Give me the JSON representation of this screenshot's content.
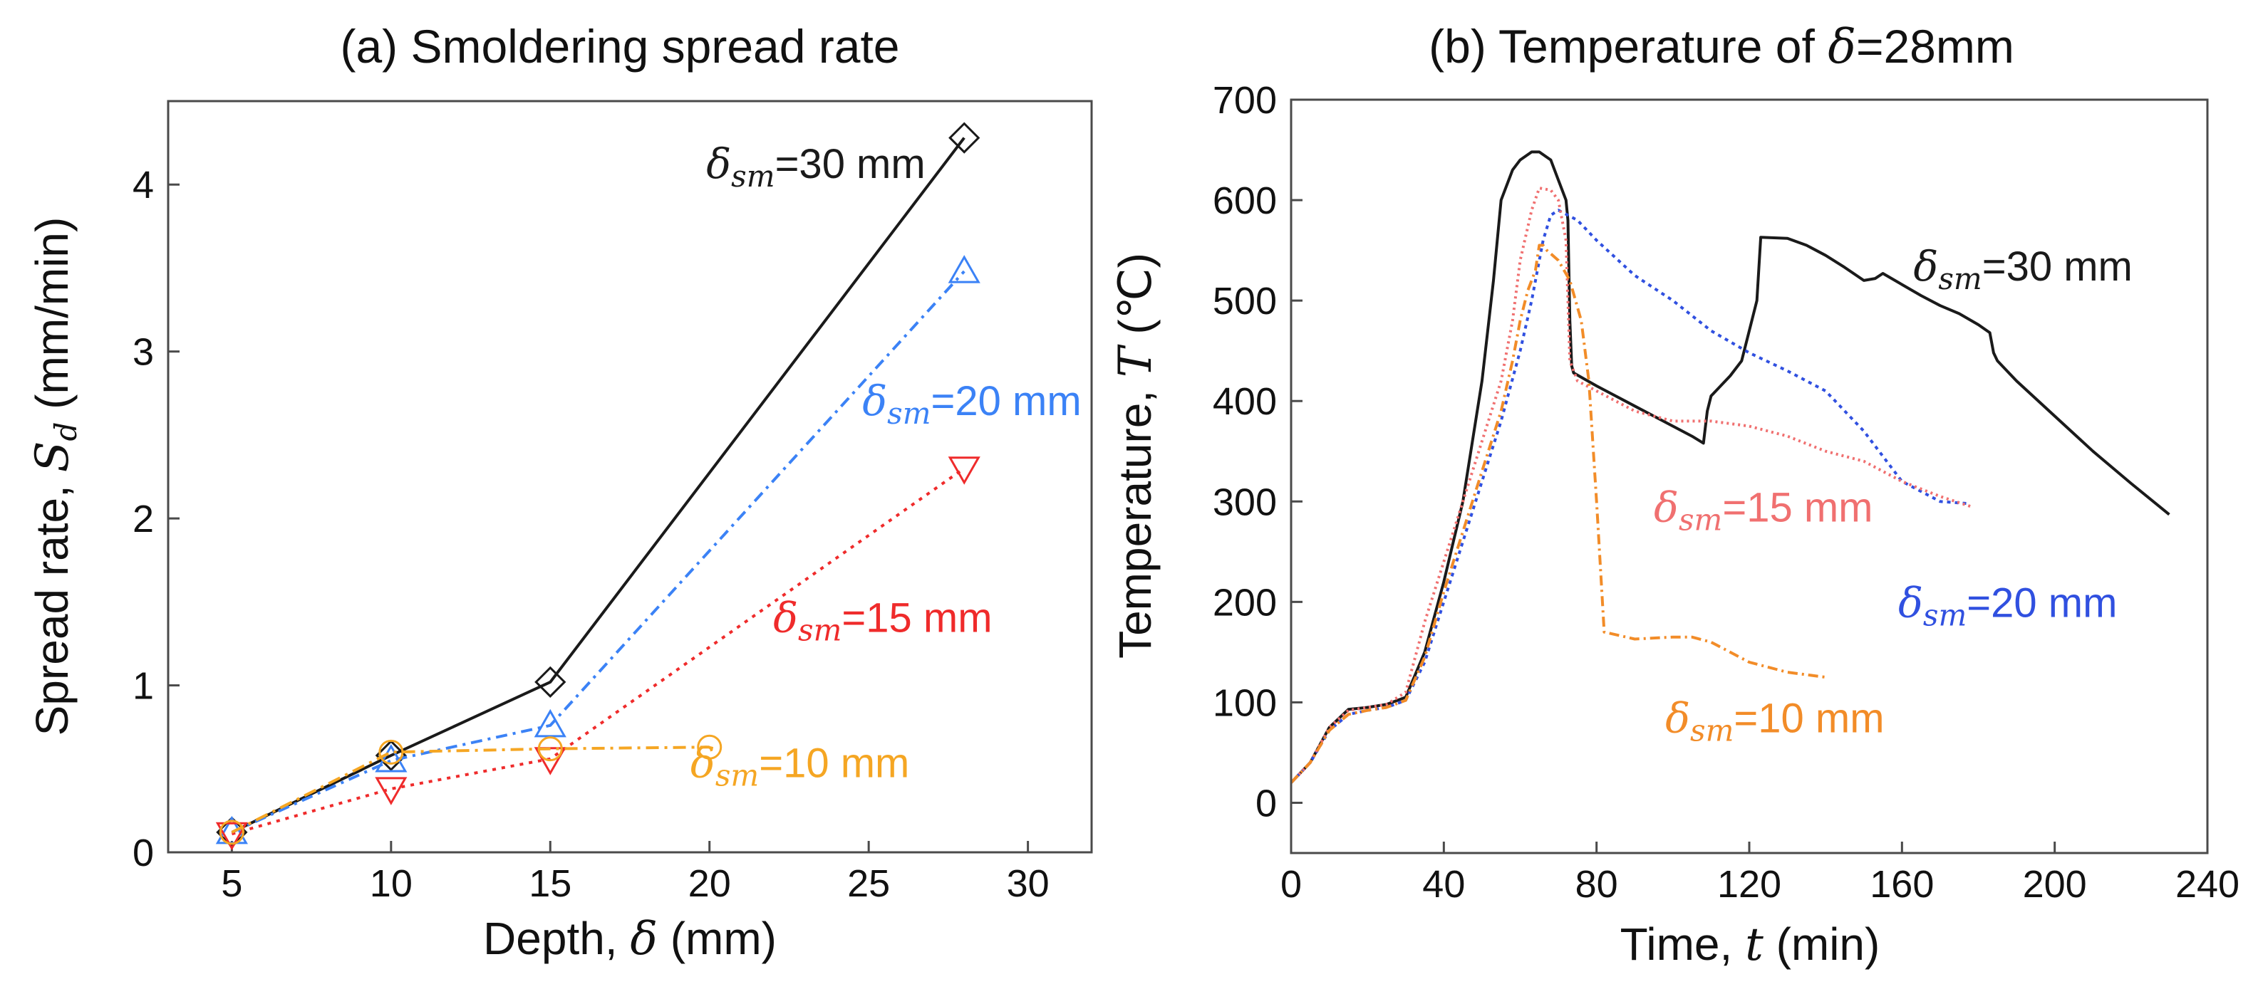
{
  "chart_data": [
    {
      "type": "line",
      "title": "(a) Smoldering  spread rate",
      "xlabel_text": "Depth, ",
      "xlabel_symbol": "δ",
      "xlabel_unit": " (mm)",
      "ylabel_text": "Spread rate, ",
      "ylabel_symbol": "S",
      "ylabel_sub": "d",
      "ylabel_unit": " (mm/min)",
      "xlim": [
        3,
        32
      ],
      "ylim": [
        0,
        4.5
      ],
      "xticks": [
        5,
        10,
        15,
        20,
        25,
        30
      ],
      "yticks": [
        0,
        1,
        2,
        3,
        4
      ],
      "series": [
        {
          "name": "δsm=30 mm",
          "label_prefix": "δ",
          "label_sub": "sm",
          "label_rest": "=30 mm",
          "color": "#1a1a1a",
          "dash": "",
          "marker": "diamond",
          "x": [
            5,
            10,
            15,
            28
          ],
          "y": [
            0.12,
            0.58,
            1.02,
            4.28
          ],
          "label_at": [
            19.9,
            4.04
          ]
        },
        {
          "name": "δsm=20 mm",
          "label_prefix": "δ",
          "label_sub": "sm",
          "label_rest": "=20 mm",
          "color": "#3b82f6",
          "dash": "16 8 4 8",
          "marker": "triangle-up",
          "x": [
            5,
            10,
            15,
            28
          ],
          "y": [
            0.12,
            0.55,
            0.76,
            3.48
          ],
          "label_at": [
            24.8,
            2.62
          ]
        },
        {
          "name": "δsm=15 mm",
          "label_prefix": "δ",
          "label_sub": "sm",
          "label_rest": "=15 mm",
          "color": "#ef2b2b",
          "dash": "5 8",
          "marker": "triangle-down",
          "x": [
            5,
            10,
            15,
            28
          ],
          "y": [
            0.11,
            0.38,
            0.56,
            2.3
          ],
          "label_at": [
            22.0,
            1.32
          ]
        },
        {
          "name": "δsm=10 mm",
          "label_prefix": "δ",
          "label_sub": "sm",
          "label_rest": "=10 mm",
          "color": "#f5a623",
          "dash": "18 8 4 8",
          "marker": "circle",
          "x": [
            5,
            10,
            15,
            20
          ],
          "y": [
            0.12,
            0.6,
            0.62,
            0.63
          ],
          "label_at": [
            19.4,
            0.45
          ]
        }
      ]
    },
    {
      "type": "line",
      "title_text": "(b) Temperature of ",
      "title_symbol": "δ",
      "title_rest": "=28mm",
      "xlabel_text": "Time, ",
      "xlabel_symbol": "t",
      "xlabel_unit": " (min)",
      "ylabel_text": "Temperature, ",
      "ylabel_symbol": "T",
      "ylabel_unit": " (℃)",
      "xlim": [
        0,
        240
      ],
      "ylim": [
        -50,
        700
      ],
      "xticks": [
        0,
        40,
        80,
        120,
        160,
        200,
        240
      ],
      "yticks": [
        0,
        100,
        200,
        300,
        400,
        500,
        600,
        700
      ],
      "series": [
        {
          "name": "δsm=30 mm",
          "label_prefix": "δ",
          "label_sub": "sm",
          "label_rest": "=30 mm",
          "color": "#1a1a1a",
          "dash": "",
          "x": [
            0,
            5,
            10,
            15,
            20,
            25,
            30,
            35,
            40,
            45,
            50,
            53,
            55,
            58,
            60,
            63,
            65,
            68,
            70,
            72,
            72.5,
            73,
            73.5,
            74,
            80,
            85,
            90,
            95,
            100,
            105,
            108,
            109,
            110,
            115,
            118,
            120,
            122,
            123,
            130,
            135,
            140,
            145,
            150,
            153,
            155,
            160,
            165,
            170,
            175,
            180,
            183,
            184,
            185,
            190,
            200,
            210,
            220,
            230
          ],
          "y": [
            20,
            40,
            75,
            93,
            95,
            98,
            105,
            150,
            220,
            300,
            420,
            520,
            600,
            630,
            640,
            648,
            648,
            640,
            620,
            600,
            580,
            480,
            435,
            428,
            415,
            405,
            395,
            385,
            375,
            365,
            358,
            390,
            405,
            425,
            440,
            470,
            500,
            563,
            562,
            555,
            545,
            533,
            520,
            522,
            527,
            516,
            505,
            495,
            487,
            476,
            468,
            448,
            440,
            420,
            385,
            350,
            318,
            287
          ],
          "label_at": [
            163,
            520
          ]
        },
        {
          "name": "δsm=20 mm",
          "label_prefix": "δ",
          "label_sub": "sm",
          "label_rest": "=20 mm",
          "color": "#3050e0",
          "dash": "5 6",
          "x": [
            0,
            5,
            10,
            15,
            20,
            25,
            30,
            35,
            40,
            45,
            50,
            55,
            60,
            63,
            66,
            68,
            70,
            75,
            80,
            90,
            100,
            110,
            120,
            130,
            140,
            150,
            160,
            170,
            177
          ],
          "y": [
            20,
            40,
            72,
            88,
            92,
            95,
            102,
            140,
            200,
            260,
            320,
            380,
            450,
            500,
            560,
            585,
            590,
            580,
            560,
            525,
            500,
            470,
            448,
            430,
            410,
            370,
            320,
            300,
            298
          ],
          "label_at": [
            159,
            185
          ]
        },
        {
          "name": "δsm=15 mm",
          "label_prefix": "δ",
          "label_sub": "sm",
          "label_rest": "=15 mm",
          "color": "#f07070",
          "dash": "3 5",
          "x": [
            0,
            5,
            10,
            15,
            20,
            25,
            30,
            35,
            40,
            45,
            50,
            55,
            58,
            60,
            63,
            65,
            68,
            70,
            72,
            73,
            75,
            80,
            90,
            100,
            110,
            120,
            130,
            140,
            150,
            160,
            170,
            178
          ],
          "y": [
            20,
            40,
            75,
            92,
            95,
            98,
            110,
            180,
            240,
            300,
            360,
            420,
            480,
            540,
            590,
            612,
            610,
            600,
            560,
            440,
            420,
            410,
            390,
            380,
            380,
            375,
            365,
            350,
            340,
            320,
            305,
            295
          ],
          "label_at": [
            95,
            280
          ]
        },
        {
          "name": "δsm=10 mm",
          "label_prefix": "δ",
          "label_sub": "sm",
          "label_rest": "=10 mm",
          "color": "#f28c28",
          "dash": "14 6 3 6",
          "x": [
            0,
            5,
            10,
            15,
            20,
            25,
            30,
            35,
            40,
            45,
            50,
            55,
            58,
            60,
            62,
            64,
            65,
            66,
            67,
            70,
            73,
            76,
            78,
            80,
            82,
            90,
            100,
            105,
            110,
            115,
            120,
            130,
            140
          ],
          "y": [
            20,
            40,
            72,
            88,
            92,
            95,
            102,
            145,
            210,
            270,
            330,
            390,
            440,
            480,
            510,
            530,
            555,
            555,
            550,
            540,
            520,
            480,
            420,
            300,
            170,
            163,
            165,
            165,
            160,
            150,
            140,
            130,
            125
          ],
          "label_at": [
            98,
            70
          ]
        }
      ]
    }
  ]
}
